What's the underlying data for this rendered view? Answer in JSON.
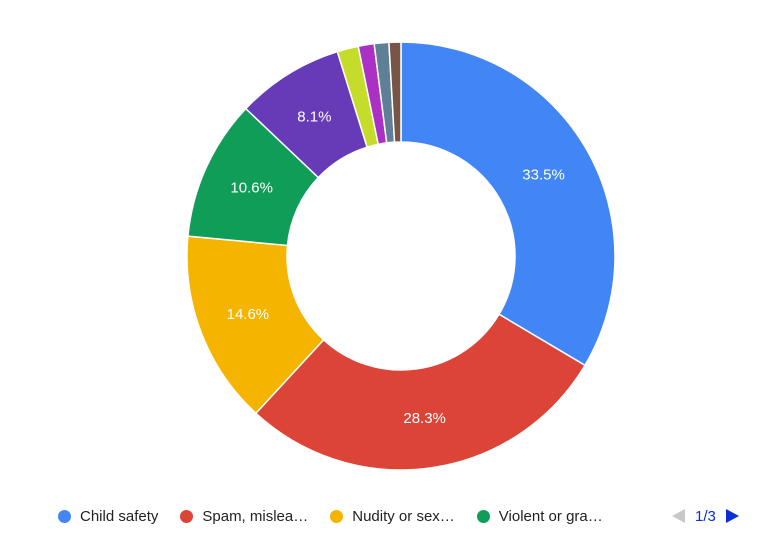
{
  "chart_data": {
    "type": "pie",
    "donut": true,
    "slices": [
      {
        "label": "Child safety",
        "value": 33.5,
        "color": "#4285f4",
        "display": "33.5%"
      },
      {
        "label": "Spam, mislea…",
        "value": 28.3,
        "color": "#db4437",
        "display": "28.3%"
      },
      {
        "label": "Nudity or sex…",
        "value": 14.6,
        "color": "#f4b400",
        "display": "14.6%"
      },
      {
        "label": "Violent or gra…",
        "value": 10.6,
        "color": "#0f9d58",
        "display": "10.6%"
      },
      {
        "value": 8.1,
        "color": "#673ab7",
        "display": "8.1%"
      },
      {
        "value": 1.6,
        "color": "#c6dc2a"
      },
      {
        "value": 1.2,
        "color": "#ab30c4"
      },
      {
        "value": 1.1,
        "color": "#5f7f96"
      },
      {
        "value": 0.9,
        "color": "#795548"
      }
    ]
  },
  "legend": {
    "items": [
      {
        "label": "Child safety",
        "color": "#4285f4"
      },
      {
        "label": "Spam, mislea…",
        "color": "#db4437"
      },
      {
        "label": "Nudity or sex…",
        "color": "#f4b400"
      },
      {
        "label": "Violent or gra…",
        "color": "#0f9d58"
      }
    ],
    "page": "1/3",
    "prev_icon": "triangle-left-icon",
    "next_icon": "triangle-right-icon",
    "nav_color": "#0b2fd6"
  }
}
